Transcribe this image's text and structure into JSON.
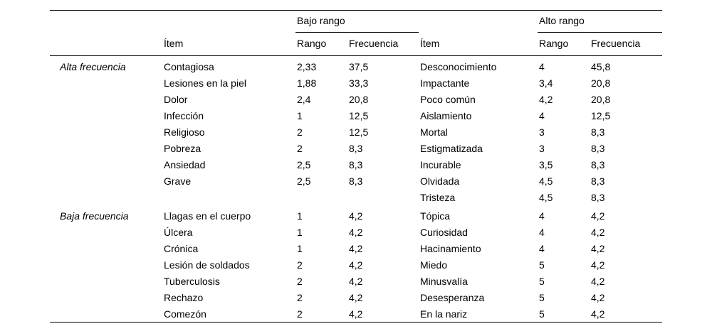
{
  "table": {
    "spanners": {
      "low": "Bajo rango",
      "high": "Alto rango"
    },
    "headers": {
      "item": "Ítem",
      "rango": "Rango",
      "frecuencia": "Frecuencia"
    },
    "groups": [
      {
        "label": "Alta frecuencia",
        "rows": [
          [
            "Contagiosa",
            "2,33",
            "37,5",
            "Desconocimiento",
            "4",
            "45,8"
          ],
          [
            "Lesiones en la piel",
            "1,88",
            "33,3",
            "Impactante",
            "3,4",
            "20,8"
          ],
          [
            "Dolor",
            "2,4",
            "20,8",
            "Poco común",
            "4,2",
            "20,8"
          ],
          [
            "Infección",
            "1",
            "12,5",
            "Aislamiento",
            "4",
            "12,5"
          ],
          [
            "Religioso",
            "2",
            "12,5",
            "Mortal",
            "3",
            "8,3"
          ],
          [
            "Pobreza",
            "2",
            "8,3",
            "Estigmatizada",
            "3",
            "8,3"
          ],
          [
            "Ansiedad",
            "2,5",
            "8,3",
            "Incurable",
            "3,5",
            "8,3"
          ],
          [
            "Grave",
            "2,5",
            "8,3",
            "Olvidada",
            "4,5",
            "8,3"
          ],
          [
            "",
            "",
            "",
            "Tristeza",
            "4,5",
            "8,3"
          ]
        ]
      },
      {
        "label": "Baja frecuencia",
        "rows": [
          [
            "Llagas en el cuerpo",
            "1",
            "4,2",
            "Tópica",
            "4",
            "4,2"
          ],
          [
            "Úlcera",
            "1",
            "4,2",
            "Curiosidad",
            "4",
            "4,2"
          ],
          [
            "Crónica",
            "1",
            "4,2",
            "Hacinamiento",
            "4",
            "4,2"
          ],
          [
            "Lesión de soldados",
            "2",
            "4,2",
            "Miedo",
            "5",
            "4,2"
          ],
          [
            "Tuberculosis",
            "2",
            "4,2",
            "Minusvalía",
            "5",
            "4,2"
          ],
          [
            "Rechazo",
            "2",
            "4,2",
            "Desesperanza",
            "5",
            "4,2"
          ],
          [
            "Comezón",
            "2",
            "4,2",
            "En la nariz",
            "5",
            "4,2"
          ]
        ]
      }
    ]
  }
}
